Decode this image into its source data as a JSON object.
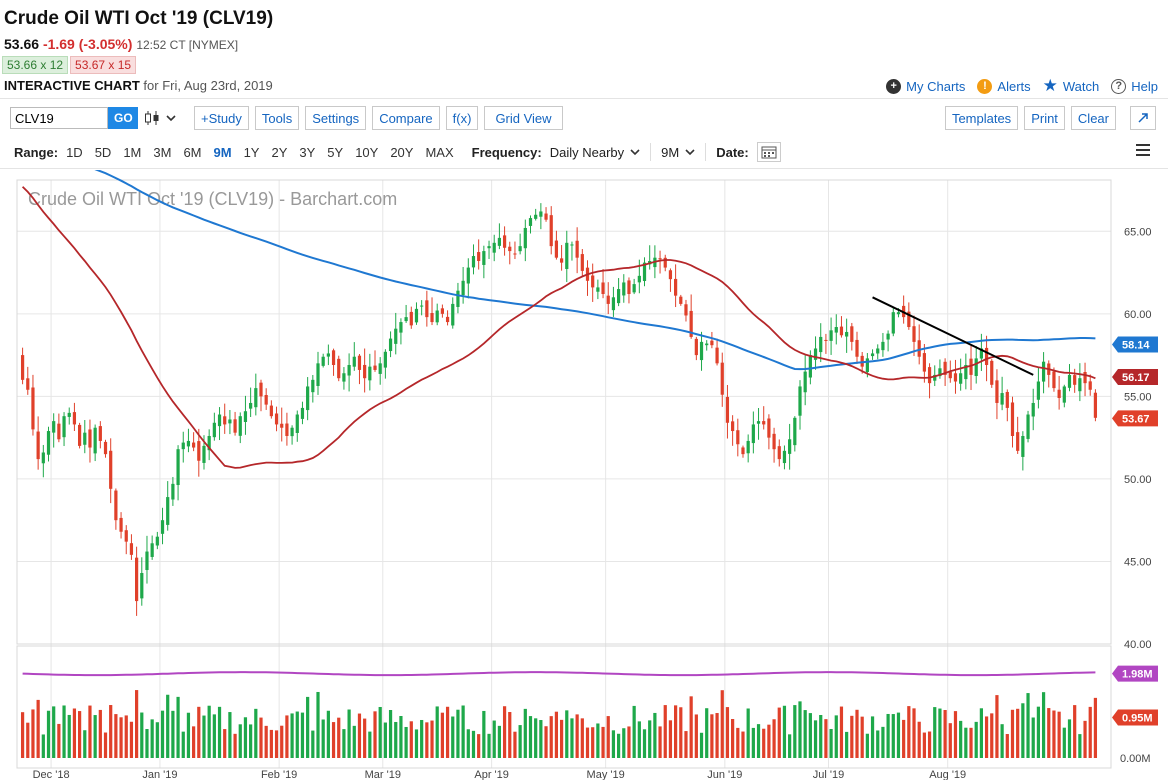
{
  "header": {
    "title": "Crude Oil WTI Oct '19 (CLV19)",
    "last": "53.66",
    "change": "-1.69 (-3.05%)",
    "time": "12:52 CT [NYMEX]",
    "bid": "53.66 x 12",
    "ask": "53.67 x 15",
    "interactive_label": "INTERACTIVE CHART",
    "interactive_date": "for Fri, Aug 23rd, 2019"
  },
  "links": {
    "my_charts": "My Charts",
    "alerts": "Alerts",
    "watch": "Watch",
    "help": "Help"
  },
  "toolbar": {
    "symbol": "CLV19",
    "go": "GO",
    "study": "+Study",
    "tools": "Tools",
    "settings": "Settings",
    "compare": "Compare",
    "fx": "f(x)",
    "grid_view": "Grid View",
    "templates": "Templates",
    "print": "Print",
    "clear": "Clear"
  },
  "range_bar": {
    "range_label": "Range:",
    "ranges": [
      "1D",
      "5D",
      "1M",
      "3M",
      "6M",
      "9M",
      "1Y",
      "2Y",
      "3Y",
      "5Y",
      "10Y",
      "20Y",
      "MAX"
    ],
    "active_range": "9M",
    "frequency_label": "Frequency:",
    "frequency": "Daily Nearby",
    "period": "9M",
    "date_label": "Date:"
  },
  "colors": {
    "up": "#1ea84a",
    "down": "#e0402a",
    "ma_long": "#1f78d1",
    "ma_short": "#b5272a",
    "volume_avg": "#b146c2",
    "trendline": "#000000"
  },
  "chart_data": {
    "type": "candlestick",
    "title": "Crude Oil WTI Oct '19 (CLV19) - Barchart.com",
    "ylim": [
      40,
      67.5
    ],
    "yticks": [
      "65.00",
      "60.00",
      "55.00",
      "50.00",
      "45.00",
      "40.00"
    ],
    "xticks": [
      "Dec '18",
      "Jan '19",
      "Feb '19",
      "Mar '19",
      "Apr '19",
      "May '19",
      "Jun '19",
      "Jul '19",
      "Aug '19"
    ],
    "x_range": [
      "2018-11-23",
      "2019-08-23"
    ],
    "closes": [
      56.0,
      55.4,
      53.0,
      51.2,
      51.6,
      52.9,
      53.5,
      52.4,
      53.8,
      54.0,
      53.3,
      52.0,
      52.8,
      51.9,
      53.1,
      52.3,
      51.5,
      49.4,
      47.5,
      46.8,
      46.2,
      45.4,
      42.6,
      44.3,
      45.6,
      46.1,
      46.5,
      47.5,
      48.9,
      49.7,
      51.8,
      52.2,
      52.3,
      51.9,
      51.1,
      52.0,
      52.6,
      53.4,
      53.9,
      53.3,
      53.6,
      52.8,
      53.8,
      54.1,
      54.6,
      55.5,
      55.0,
      54.5,
      53.8,
      53.3,
      53.1,
      52.6,
      53.1,
      53.9,
      54.3,
      55.6,
      56.0,
      57.0,
      57.4,
      57.6,
      56.9,
      56.1,
      56.4,
      56.9,
      57.4,
      56.6,
      56.1,
      56.8,
      56.6,
      57.0,
      57.7,
      58.5,
      59.1,
      59.5,
      59.8,
      59.3,
      60.3,
      60.5,
      59.8,
      59.5,
      60.2,
      60.0,
      59.5,
      60.6,
      61.4,
      62.0,
      62.8,
      63.5,
      63.2,
      63.8,
      64.1,
      64.3,
      64.6,
      64.0,
      63.8,
      63.6,
      64.1,
      65.2,
      65.8,
      66.0,
      66.2,
      65.7,
      64.1,
      63.4,
      63.1,
      64.3,
      64.2,
      63.4,
      62.6,
      62.0,
      61.6,
      61.6,
      61.2,
      60.6,
      61.0,
      61.5,
      61.9,
      61.2,
      61.8,
      62.3,
      63.1,
      63.2,
      63.4,
      63.3,
      62.8,
      62.1,
      61.1,
      60.6,
      59.9,
      58.6,
      57.5,
      58.3,
      58.2,
      58.1,
      57.0,
      55.1,
      53.4,
      52.9,
      52.1,
      51.5,
      52.3,
      53.3,
      53.5,
      53.3,
      52.5,
      51.8,
      51.2,
      51.7,
      52.4,
      53.7,
      55.6,
      56.5,
      57.5,
      57.9,
      58.6,
      58.4,
      59.0,
      59.2,
      58.7,
      58.9,
      58.3,
      57.4,
      56.8,
      57.3,
      57.6,
      57.9,
      58.3,
      58.8,
      60.1,
      60.1,
      59.8,
      59.2,
      58.3,
      57.4,
      56.5,
      55.8,
      56.3,
      56.7,
      56.3,
      56.1,
      55.9,
      56.4,
      56.9,
      56.3,
      57.3,
      57.9,
      56.9,
      55.7,
      54.6,
      55.2,
      54.3,
      52.6,
      51.7,
      52.6,
      53.9,
      54.6,
      55.9,
      57.1,
      56.3,
      55.5,
      54.9,
      55.6,
      56.3,
      55.7,
      56.1,
      55.8,
      55.4,
      53.7
    ],
    "sma50_endpoint": "56.17",
    "sma200_endpoint": "58.14",
    "last_price": "53.67",
    "volume": {
      "yticks": [
        "1.98M",
        "0.95M",
        "0.00M"
      ],
      "ylim": [
        0,
        2.3
      ],
      "avg_label": "1.98M",
      "last_label": "0.95M"
    },
    "trendline": {
      "from": [
        "2019-07-11",
        61.0
      ],
      "to": [
        "2019-08-23",
        56.3
      ]
    },
    "grid": true,
    "price_axis": "right"
  }
}
